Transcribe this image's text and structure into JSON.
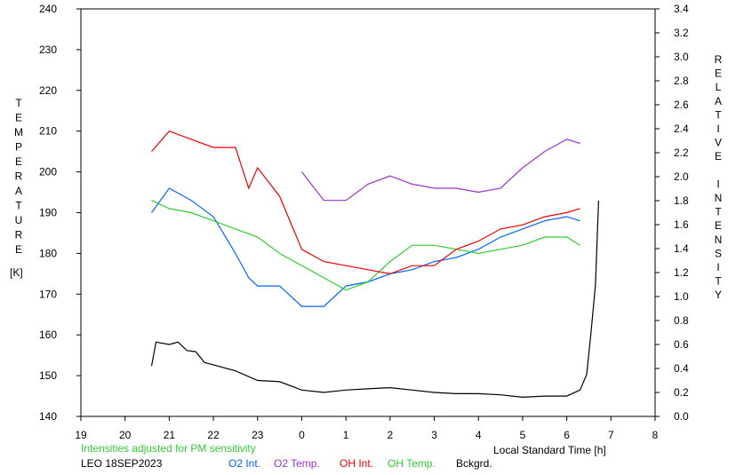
{
  "chart_data": {
    "type": "line",
    "x_axis": {
      "label": "Local Standard Time [h]",
      "range": [
        19,
        32
      ],
      "tick_labels": [
        "19",
        "20",
        "21",
        "22",
        "23",
        "0",
        "1",
        "2",
        "3",
        "4",
        "5",
        "6",
        "7",
        "8"
      ]
    },
    "y_left": {
      "label_letters": [
        "T",
        "E",
        "M",
        "P",
        "E",
        "R",
        "A",
        "T",
        "U",
        "R",
        "E"
      ],
      "unit": "[K]",
      "range": [
        140,
        240
      ],
      "ticks": [
        140,
        150,
        160,
        170,
        180,
        190,
        200,
        210,
        220,
        230,
        240
      ]
    },
    "y_right": {
      "label_letters": [
        "R",
        "E",
        "L",
        "A",
        "T",
        "I",
        "V",
        "E",
        "",
        "I",
        "N",
        "T",
        "E",
        "N",
        "S",
        "I",
        "T",
        "Y"
      ],
      "range": [
        0.0,
        3.4
      ],
      "ticks": [
        "0.0",
        "0.2",
        "0.4",
        "0.6",
        "0.8",
        "1.0",
        "1.2",
        "1.4",
        "1.6",
        "1.8",
        "2.0",
        "2.2",
        "2.4",
        "2.6",
        "2.8",
        "3.0",
        "3.2",
        "3.4"
      ]
    },
    "series": [
      {
        "name": "O2 Int.",
        "color": "#0066ff",
        "axis": "left",
        "points": [
          [
            20.6,
            190
          ],
          [
            21.0,
            196
          ],
          [
            21.5,
            193
          ],
          [
            22.0,
            189
          ],
          [
            22.5,
            180
          ],
          [
            22.8,
            174
          ],
          [
            23.0,
            172
          ],
          [
            23.5,
            172
          ],
          [
            24.0,
            167
          ],
          [
            24.5,
            167
          ],
          [
            25.0,
            172
          ],
          [
            25.5,
            173
          ],
          [
            26.0,
            175
          ],
          [
            26.5,
            176
          ],
          [
            27.0,
            178
          ],
          [
            27.5,
            179
          ],
          [
            28.0,
            181
          ],
          [
            28.5,
            184
          ],
          [
            29.0,
            186
          ],
          [
            29.5,
            188
          ],
          [
            30.0,
            189
          ],
          [
            30.3,
            188
          ]
        ]
      },
      {
        "name": "O2 Temp.",
        "color": "#9933cc",
        "axis": "left",
        "points": [
          [
            24.0,
            200
          ],
          [
            24.5,
            193
          ],
          [
            25.0,
            193
          ],
          [
            25.5,
            197
          ],
          [
            26.0,
            199
          ],
          [
            26.5,
            197
          ],
          [
            27.0,
            196
          ],
          [
            27.5,
            196
          ],
          [
            28.0,
            195
          ],
          [
            28.5,
            196
          ],
          [
            29.0,
            201
          ],
          [
            29.5,
            205
          ],
          [
            30.0,
            208
          ],
          [
            30.3,
            207
          ]
        ]
      },
      {
        "name": "OH Int.",
        "color": "#ee0000",
        "axis": "left",
        "points": [
          [
            20.6,
            205
          ],
          [
            21.0,
            210
          ],
          [
            21.5,
            208
          ],
          [
            22.0,
            206
          ],
          [
            22.5,
            206
          ],
          [
            22.8,
            196
          ],
          [
            23.0,
            201
          ],
          [
            23.5,
            194
          ],
          [
            24.0,
            181
          ],
          [
            24.5,
            178
          ],
          [
            25.0,
            177
          ],
          [
            25.5,
            176
          ],
          [
            26.0,
            175
          ],
          [
            26.5,
            177
          ],
          [
            27.0,
            177
          ],
          [
            27.5,
            181
          ],
          [
            28.0,
            183
          ],
          [
            28.5,
            186
          ],
          [
            29.0,
            187
          ],
          [
            29.5,
            189
          ],
          [
            30.0,
            190
          ],
          [
            30.3,
            191
          ]
        ]
      },
      {
        "name": "OH Temp.",
        "color": "#33cc33",
        "axis": "left",
        "points": [
          [
            20.6,
            193
          ],
          [
            21.0,
            191
          ],
          [
            21.5,
            190
          ],
          [
            22.0,
            188
          ],
          [
            22.5,
            186
          ],
          [
            23.0,
            184
          ],
          [
            23.5,
            180
          ],
          [
            24.0,
            177
          ],
          [
            24.5,
            174
          ],
          [
            25.0,
            171
          ],
          [
            25.5,
            173
          ],
          [
            26.0,
            178
          ],
          [
            26.5,
            182
          ],
          [
            27.0,
            182
          ],
          [
            27.5,
            181
          ],
          [
            28.0,
            180
          ],
          [
            28.5,
            181
          ],
          [
            29.0,
            182
          ],
          [
            29.5,
            184
          ],
          [
            30.0,
            184
          ],
          [
            30.3,
            182
          ]
        ]
      },
      {
        "name": "Bckgrd.",
        "color": "#000000",
        "axis": "right",
        "points": [
          [
            20.6,
            0.42
          ],
          [
            20.7,
            0.62
          ],
          [
            21.0,
            0.6
          ],
          [
            21.2,
            0.62
          ],
          [
            21.4,
            0.55
          ],
          [
            21.6,
            0.54
          ],
          [
            21.8,
            0.45
          ],
          [
            22.0,
            0.43
          ],
          [
            22.5,
            0.38
          ],
          [
            23.0,
            0.3
          ],
          [
            23.5,
            0.29
          ],
          [
            24.0,
            0.22
          ],
          [
            24.5,
            0.2
          ],
          [
            25.0,
            0.22
          ],
          [
            25.5,
            0.23
          ],
          [
            26.0,
            0.24
          ],
          [
            26.5,
            0.22
          ],
          [
            27.0,
            0.2
          ],
          [
            27.5,
            0.19
          ],
          [
            28.0,
            0.19
          ],
          [
            28.5,
            0.18
          ],
          [
            29.0,
            0.16
          ],
          [
            29.5,
            0.17
          ],
          [
            30.0,
            0.17
          ],
          [
            30.3,
            0.22
          ],
          [
            30.45,
            0.35
          ],
          [
            30.55,
            0.7
          ],
          [
            30.65,
            1.1
          ],
          [
            30.7,
            1.6
          ],
          [
            30.72,
            1.8
          ]
        ]
      }
    ]
  },
  "footer": {
    "note": "Intensities adjusted for PM sensitivity",
    "note_color": "#33cc33",
    "station": "LEO 18SEP2023"
  }
}
